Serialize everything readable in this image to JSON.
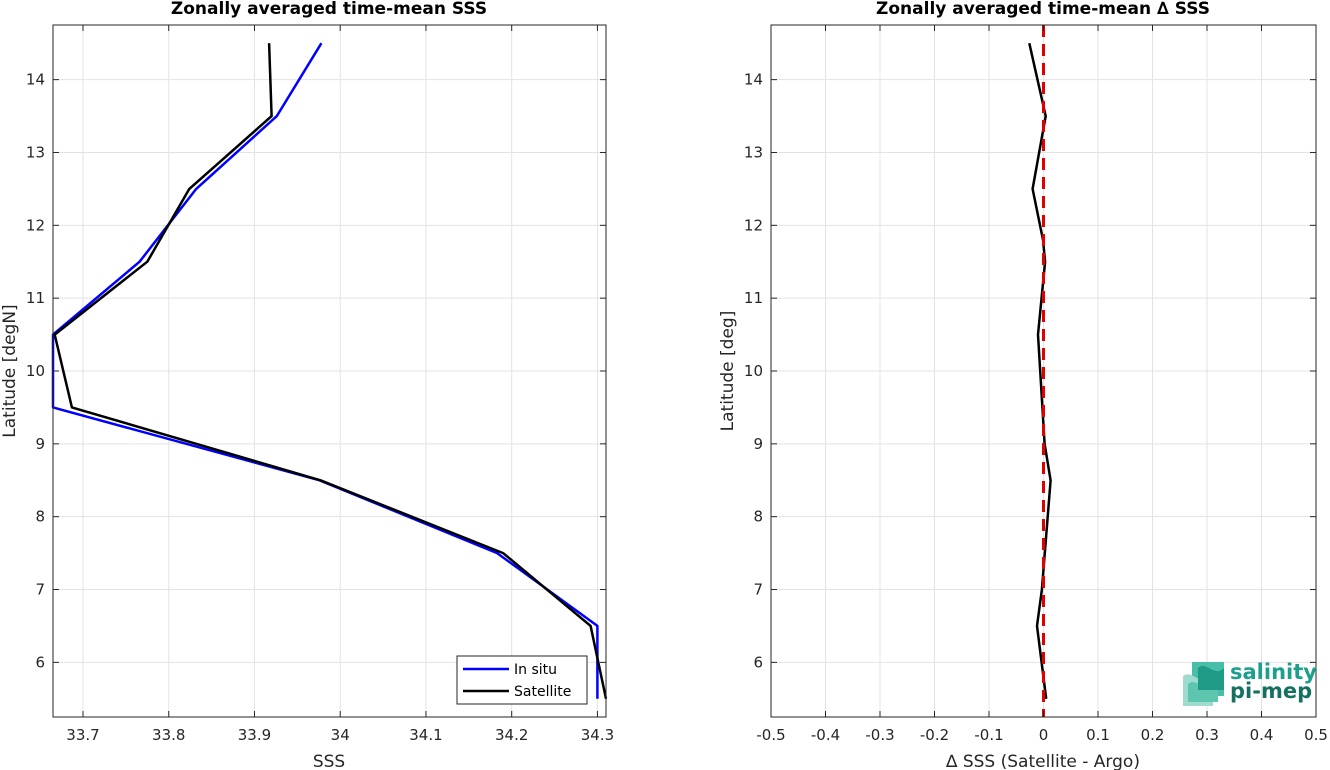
{
  "chart_data": [
    {
      "type": "line",
      "title": "Zonally averaged time-mean SSS",
      "xlabel": "SSS",
      "ylabel": "Latitude [degN]",
      "xlim": [
        33.665,
        34.31
      ],
      "ylim": [
        5.25,
        14.75
      ],
      "xticks": [
        33.7,
        33.8,
        33.9,
        34,
        34.1,
        34.2,
        34.3
      ],
      "xtick_labels": [
        "33.7",
        "33.8",
        "33.9",
        "34",
        "34.1",
        "34.2",
        "34.3"
      ],
      "yticks": [
        6,
        7,
        8,
        9,
        10,
        11,
        12,
        13,
        14
      ],
      "ytick_labels": [
        "6",
        "7",
        "8",
        "9",
        "10",
        "11",
        "12",
        "13",
        "14"
      ],
      "grid": true,
      "legend_position": "bottom-right",
      "series": [
        {
          "name": "In situ",
          "color": "#0000ff",
          "points": [
            [
              34.3,
              5.5
            ],
            [
              34.3,
              6.5
            ],
            [
              34.183,
              7.5
            ],
            [
              33.976,
              8.5
            ],
            [
              33.665,
              9.5
            ],
            [
              33.665,
              10.5
            ],
            [
              33.766,
              11.5
            ],
            [
              33.832,
              12.5
            ],
            [
              33.926,
              13.5
            ],
            [
              33.978,
              14.5
            ]
          ]
        },
        {
          "name": "Satellite",
          "color": "#000000",
          "points": [
            [
              34.31,
              5.5
            ],
            [
              34.292,
              6.5
            ],
            [
              34.19,
              7.5
            ],
            [
              33.977,
              8.5
            ],
            [
              33.687,
              9.5
            ],
            [
              33.667,
              10.5
            ],
            [
              33.775,
              11.5
            ],
            [
              33.824,
              12.5
            ],
            [
              33.92,
              13.5
            ],
            [
              33.917,
              14.5
            ]
          ]
        }
      ]
    },
    {
      "type": "line",
      "title": "Zonally averaged time-mean ∆ SSS",
      "xlabel": "∆ SSS (Satellite - Argo)",
      "ylabel": "Latitude [deg]",
      "xlim": [
        -0.5,
        0.5
      ],
      "ylim": [
        5.25,
        14.75
      ],
      "xticks": [
        -0.5,
        -0.4,
        -0.3,
        -0.2,
        -0.1,
        0,
        0.1,
        0.2,
        0.3,
        0.4,
        0.5
      ],
      "xtick_labels": [
        "-0.5",
        "-0.4",
        "-0.3",
        "-0.2",
        "-0.1",
        "0",
        "0.1",
        "0.2",
        "0.3",
        "0.4",
        "0.5"
      ],
      "yticks": [
        6,
        7,
        8,
        9,
        10,
        11,
        12,
        13,
        14
      ],
      "ytick_labels": [
        "6",
        "7",
        "8",
        "9",
        "10",
        "11",
        "12",
        "13",
        "14"
      ],
      "grid": true,
      "zero_line": {
        "x": 0,
        "color": "#e00000",
        "style": "dashed"
      },
      "series": [
        {
          "color": "#000000",
          "points": [
            [
              0.005,
              5.5
            ],
            [
              -0.012,
              6.5
            ],
            [
              -0.003,
              7.0
            ],
            [
              0.013,
              8.5
            ],
            [
              0.002,
              9.0
            ],
            [
              -0.01,
              10.5
            ],
            [
              0.003,
              11.5
            ],
            [
              -0.001,
              11.8
            ],
            [
              -0.02,
              12.5
            ],
            [
              0.004,
              13.5
            ],
            [
              -0.026,
              14.5
            ]
          ]
        }
      ]
    }
  ],
  "logo": {
    "line1": "salinity",
    "line2": "pi-mep"
  }
}
